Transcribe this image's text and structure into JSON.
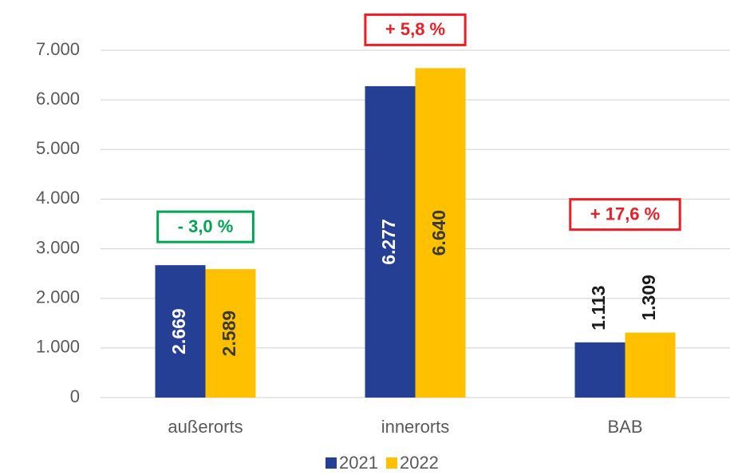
{
  "chart_data": {
    "type": "bar",
    "categories": [
      "außerorts",
      "innerorts",
      "BAB"
    ],
    "series": [
      {
        "name": "2021",
        "color": "#253f95",
        "values": [
          2669,
          6277,
          1113
        ],
        "value_labels": [
          "2.669",
          "6.277",
          "1.113"
        ]
      },
      {
        "name": "2022",
        "color": "#ffc000",
        "values": [
          2589,
          6640,
          1309
        ],
        "value_labels": [
          "2.589",
          "6.640",
          "1.309"
        ]
      }
    ],
    "ylim": [
      0,
      7000
    ],
    "yticks": [
      {
        "value": 0,
        "label": "0"
      },
      {
        "value": 1000,
        "label": "1.000"
      },
      {
        "value": 2000,
        "label": "2.000"
      },
      {
        "value": 3000,
        "label": "3.000"
      },
      {
        "value": 4000,
        "label": "4.000"
      },
      {
        "value": 5000,
        "label": "5.000"
      },
      {
        "value": 6000,
        "label": "6.000"
      },
      {
        "value": 7000,
        "label": "7.000"
      }
    ],
    "grid": true,
    "legend": "bottom",
    "annotations": [
      {
        "text": "- 3,0 %",
        "category": "außerorts",
        "color": "#00a651"
      },
      {
        "text": "+ 5,8 %",
        "category": "innerorts",
        "color": "#ee1c25"
      },
      {
        "text": "+ 17,6 %",
        "category": "BAB",
        "color": "#ee1c25"
      }
    ]
  }
}
